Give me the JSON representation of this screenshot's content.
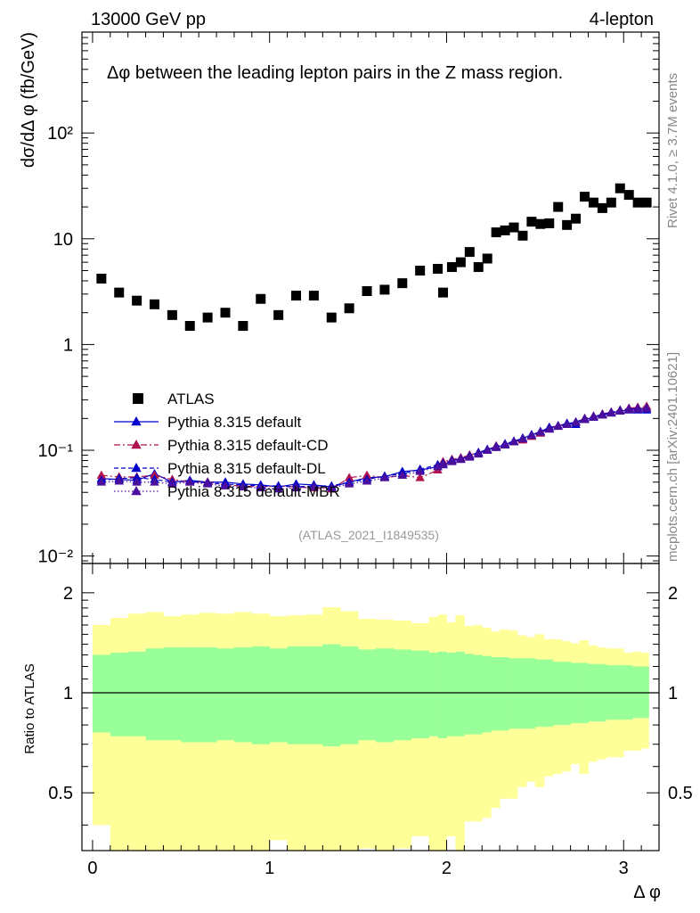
{
  "header": {
    "energy_label": "13000 GeV pp",
    "channel_label": "4-lepton",
    "plot_title": "Δφ between the leading lepton pairs in the Z mass region.",
    "ref_label": "(ATLAS_2021_I1849535)",
    "rivet_label": "Rivet 4.1.0, ≥ 3.7M events",
    "mcplots_label": "mcplots.cern.ch [arXiv:2401.10621]"
  },
  "colors": {
    "data": "#000000",
    "default": "#0000cc",
    "cd": "#b0134f",
    "dl": "#0000cc",
    "mbr": "#4b0f9e",
    "band_outer": "#ffff99",
    "band_inner": "#99ff99"
  },
  "chart_data": [
    {
      "type": "scatter",
      "title": "Δφ between the leading lepton pairs in the Z mass region.",
      "xlabel": "Δ φ",
      "ylabel": "dσ/dΔ φ (fb/GeV)",
      "yscale": "log",
      "xlim": [
        -0.06,
        3.2
      ],
      "ylim": [
        0.0085,
        900
      ],
      "x_ticks": [
        "0",
        "1",
        "2",
        "3"
      ],
      "y_ticks": [
        "10⁻²",
        "10⁻¹",
        "1",
        "10",
        "10²"
      ],
      "legend_position": "center-left",
      "x": [
        0.05,
        0.15,
        0.25,
        0.35,
        0.45,
        0.55,
        0.65,
        0.75,
        0.85,
        0.95,
        1.05,
        1.15,
        1.25,
        1.35,
        1.45,
        1.55,
        1.65,
        1.75,
        1.85,
        1.95,
        1.98,
        2.03,
        2.08,
        2.13,
        2.18,
        2.23,
        2.28,
        2.33,
        2.38,
        2.43,
        2.48,
        2.53,
        2.58,
        2.63,
        2.68,
        2.73,
        2.78,
        2.83,
        2.88,
        2.93,
        2.98,
        3.03,
        3.08,
        3.13
      ],
      "series": [
        {
          "name": "ATLAS",
          "style": "square",
          "values": [
            4.2,
            3.1,
            2.6,
            2.4,
            1.9,
            1.5,
            1.8,
            2.0,
            1.5,
            2.7,
            1.9,
            2.9,
            2.9,
            1.8,
            2.2,
            3.2,
            3.3,
            3.8,
            5.0,
            5.2,
            3.1,
            5.4,
            6.0,
            7.5,
            5.4,
            6.5,
            11.5,
            12.0,
            12.8,
            10.7,
            14.5,
            13.8,
            14.0,
            20.0,
            13.5,
            15.5,
            25.0,
            22.0,
            19.5,
            22.0,
            30.0,
            26.0,
            22.0,
            22.0
          ]
        },
        {
          "name": "Pythia 8.315 default",
          "style": "triangle-solid",
          "values": [
            0.054,
            0.053,
            0.052,
            0.06,
            0.05,
            0.052,
            0.05,
            0.05,
            0.048,
            0.047,
            0.045,
            0.048,
            0.047,
            0.045,
            0.05,
            0.055,
            0.056,
            0.063,
            0.065,
            0.07,
            0.073,
            0.08,
            0.082,
            0.09,
            0.095,
            0.1,
            0.108,
            0.112,
            0.12,
            0.13,
            0.14,
            0.15,
            0.165,
            0.17,
            0.18,
            0.175,
            0.195,
            0.205,
            0.215,
            0.225,
            0.235,
            0.24,
            0.24,
            0.24
          ]
        },
        {
          "name": "Pythia 8.315 default-CD",
          "style": "triangle-dashdot",
          "values": [
            0.058,
            0.056,
            0.056,
            0.058,
            0.053,
            0.05,
            0.05,
            0.047,
            0.046,
            0.045,
            0.046,
            0.045,
            0.044,
            0.043,
            0.055,
            0.058,
            0.055,
            0.058,
            0.055,
            0.065,
            0.078,
            0.082,
            0.085,
            0.09,
            0.095,
            0.1,
            0.11,
            0.115,
            0.12,
            0.125,
            0.135,
            0.145,
            0.16,
            0.17,
            0.175,
            0.185,
            0.2,
            0.21,
            0.22,
            0.23,
            0.24,
            0.25,
            0.255,
            0.26
          ]
        },
        {
          "name": "Pythia 8.315 default-DL",
          "style": "triangle-dashed",
          "values": [
            0.052,
            0.054,
            0.055,
            0.053,
            0.05,
            0.051,
            0.049,
            0.048,
            0.047,
            0.046,
            0.046,
            0.045,
            0.046,
            0.046,
            0.05,
            0.053,
            0.057,
            0.06,
            0.066,
            0.073,
            0.075,
            0.08,
            0.083,
            0.088,
            0.095,
            0.102,
            0.108,
            0.115,
            0.122,
            0.13,
            0.14,
            0.15,
            0.16,
            0.17,
            0.178,
            0.185,
            0.198,
            0.208,
            0.218,
            0.228,
            0.238,
            0.245,
            0.248,
            0.25
          ]
        },
        {
          "name": "Pythia 8.315 default-MBR",
          "style": "triangle-dotted",
          "values": [
            0.05,
            0.051,
            0.05,
            0.05,
            0.048,
            0.05,
            0.048,
            0.046,
            0.045,
            0.044,
            0.043,
            0.044,
            0.045,
            0.044,
            0.048,
            0.051,
            0.055,
            0.058,
            0.063,
            0.07,
            0.073,
            0.078,
            0.082,
            0.086,
            0.092,
            0.1,
            0.106,
            0.112,
            0.12,
            0.128,
            0.138,
            0.148,
            0.158,
            0.168,
            0.175,
            0.183,
            0.195,
            0.205,
            0.215,
            0.225,
            0.235,
            0.242,
            0.245,
            0.248
          ]
        }
      ]
    },
    {
      "type": "area",
      "title": "",
      "xlabel": "Δ φ",
      "ylabel": "Ratio to ATLAS",
      "yscale": "log",
      "xlim": [
        -0.06,
        3.2
      ],
      "ylim": [
        0.335,
        2.45
      ],
      "y_ticks": [
        "0.5",
        "1",
        "2"
      ],
      "x_edges": [
        0,
        0.1,
        0.2,
        0.3,
        0.4,
        0.5,
        0.6,
        0.7,
        0.8,
        0.9,
        1.0,
        1.1,
        1.2,
        1.3,
        1.4,
        1.5,
        1.6,
        1.7,
        1.8,
        1.9,
        1.95,
        2.0,
        2.05,
        2.1,
        2.15,
        2.2,
        2.25,
        2.3,
        2.35,
        2.4,
        2.45,
        2.5,
        2.55,
        2.6,
        2.65,
        2.7,
        2.75,
        2.8,
        2.85,
        2.9,
        2.95,
        3.0,
        3.05,
        3.1,
        3.14159
      ],
      "inner_upper": [
        1.3,
        1.32,
        1.33,
        1.36,
        1.37,
        1.37,
        1.37,
        1.36,
        1.37,
        1.38,
        1.36,
        1.38,
        1.38,
        1.4,
        1.38,
        1.35,
        1.36,
        1.35,
        1.34,
        1.32,
        1.33,
        1.32,
        1.33,
        1.31,
        1.3,
        1.29,
        1.28,
        1.28,
        1.27,
        1.27,
        1.27,
        1.26,
        1.26,
        1.24,
        1.24,
        1.23,
        1.23,
        1.22,
        1.22,
        1.21,
        1.21,
        1.21,
        1.2,
        1.2
      ],
      "inner_lower": [
        0.76,
        0.74,
        0.74,
        0.72,
        0.72,
        0.71,
        0.71,
        0.72,
        0.71,
        0.7,
        0.71,
        0.7,
        0.7,
        0.69,
        0.7,
        0.72,
        0.71,
        0.72,
        0.73,
        0.74,
        0.73,
        0.74,
        0.74,
        0.75,
        0.75,
        0.76,
        0.77,
        0.77,
        0.78,
        0.78,
        0.78,
        0.79,
        0.79,
        0.8,
        0.8,
        0.81,
        0.81,
        0.82,
        0.82,
        0.83,
        0.83,
        0.83,
        0.84,
        0.84
      ],
      "outer_upper": [
        1.6,
        1.68,
        1.73,
        1.75,
        1.7,
        1.72,
        1.74,
        1.73,
        1.75,
        1.73,
        1.7,
        1.71,
        1.72,
        1.81,
        1.76,
        1.67,
        1.66,
        1.65,
        1.62,
        1.69,
        1.72,
        1.63,
        1.71,
        1.59,
        1.6,
        1.57,
        1.53,
        1.55,
        1.54,
        1.49,
        1.47,
        1.5,
        1.45,
        1.45,
        1.43,
        1.41,
        1.44,
        1.39,
        1.37,
        1.36,
        1.36,
        1.32,
        1.33,
        1.32
      ],
      "outer_lower": [
        0.4,
        0.32,
        0.25,
        0.27,
        0.28,
        0.3,
        0.27,
        0.3,
        0.28,
        0.31,
        0.36,
        0.33,
        0.33,
        0.21,
        0.26,
        0.34,
        0.33,
        0.34,
        0.37,
        0.33,
        0.28,
        0.37,
        0.3,
        0.41,
        0.41,
        0.42,
        0.45,
        0.48,
        0.48,
        0.52,
        0.54,
        0.52,
        0.56,
        0.57,
        0.58,
        0.61,
        0.57,
        0.62,
        0.63,
        0.64,
        0.64,
        0.67,
        0.67,
        0.68
      ],
      "reference_line": 1
    }
  ]
}
